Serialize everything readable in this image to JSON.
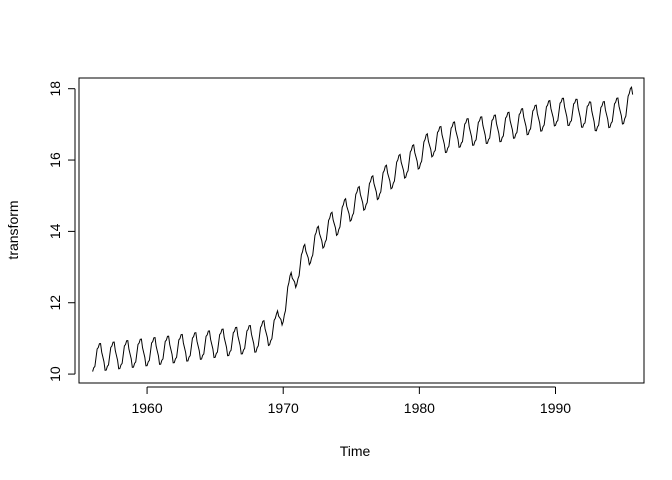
{
  "chart_data": {
    "type": "line",
    "title": "",
    "xlabel": "Time",
    "ylabel": "transform",
    "xlim": [
      1955,
      1996.5
    ],
    "ylim": [
      9.75,
      18.3
    ],
    "x_ticks": [
      1960,
      1970,
      1980,
      1990
    ],
    "x_tick_labels": [
      "1960",
      "1970",
      "1980",
      "1990"
    ],
    "y_ticks": [
      10,
      12,
      14,
      16,
      18
    ],
    "y_tick_labels": [
      "10",
      "12",
      "14",
      "16",
      "18"
    ],
    "grid": false,
    "legend": "none",
    "frequency": 12,
    "series": [
      {
        "color": "#000000",
        "x_start": 1956.0,
        "x_end": 1995.67,
        "level_anchors": [
          [
            1956.0,
            10.45
          ],
          [
            1962.0,
            10.7
          ],
          [
            1965.0,
            10.85
          ],
          [
            1968.0,
            11.0
          ],
          [
            1969.5,
            11.3
          ],
          [
            1970.0,
            11.85
          ],
          [
            1971.0,
            12.9
          ],
          [
            1972.0,
            13.5
          ],
          [
            1973.0,
            13.95
          ],
          [
            1974.0,
            14.3
          ],
          [
            1975.0,
            14.7
          ],
          [
            1976.0,
            15.0
          ],
          [
            1977.0,
            15.3
          ],
          [
            1978.0,
            15.6
          ],
          [
            1979.0,
            15.9
          ],
          [
            1980.0,
            16.15
          ],
          [
            1981.0,
            16.5
          ],
          [
            1982.0,
            16.6
          ],
          [
            1983.0,
            16.75
          ],
          [
            1984.0,
            16.8
          ],
          [
            1985.0,
            16.85
          ],
          [
            1986.0,
            16.9
          ],
          [
            1987.0,
            17.0
          ],
          [
            1988.0,
            17.1
          ],
          [
            1989.0,
            17.2
          ],
          [
            1990.0,
            17.35
          ],
          [
            1991.0,
            17.35
          ],
          [
            1992.0,
            17.3
          ],
          [
            1993.0,
            17.2
          ],
          [
            1994.0,
            17.3
          ],
          [
            1995.0,
            17.4
          ],
          [
            1995.67,
            17.7
          ]
        ],
        "seasonal_amplitude": 0.38
      }
    ]
  }
}
